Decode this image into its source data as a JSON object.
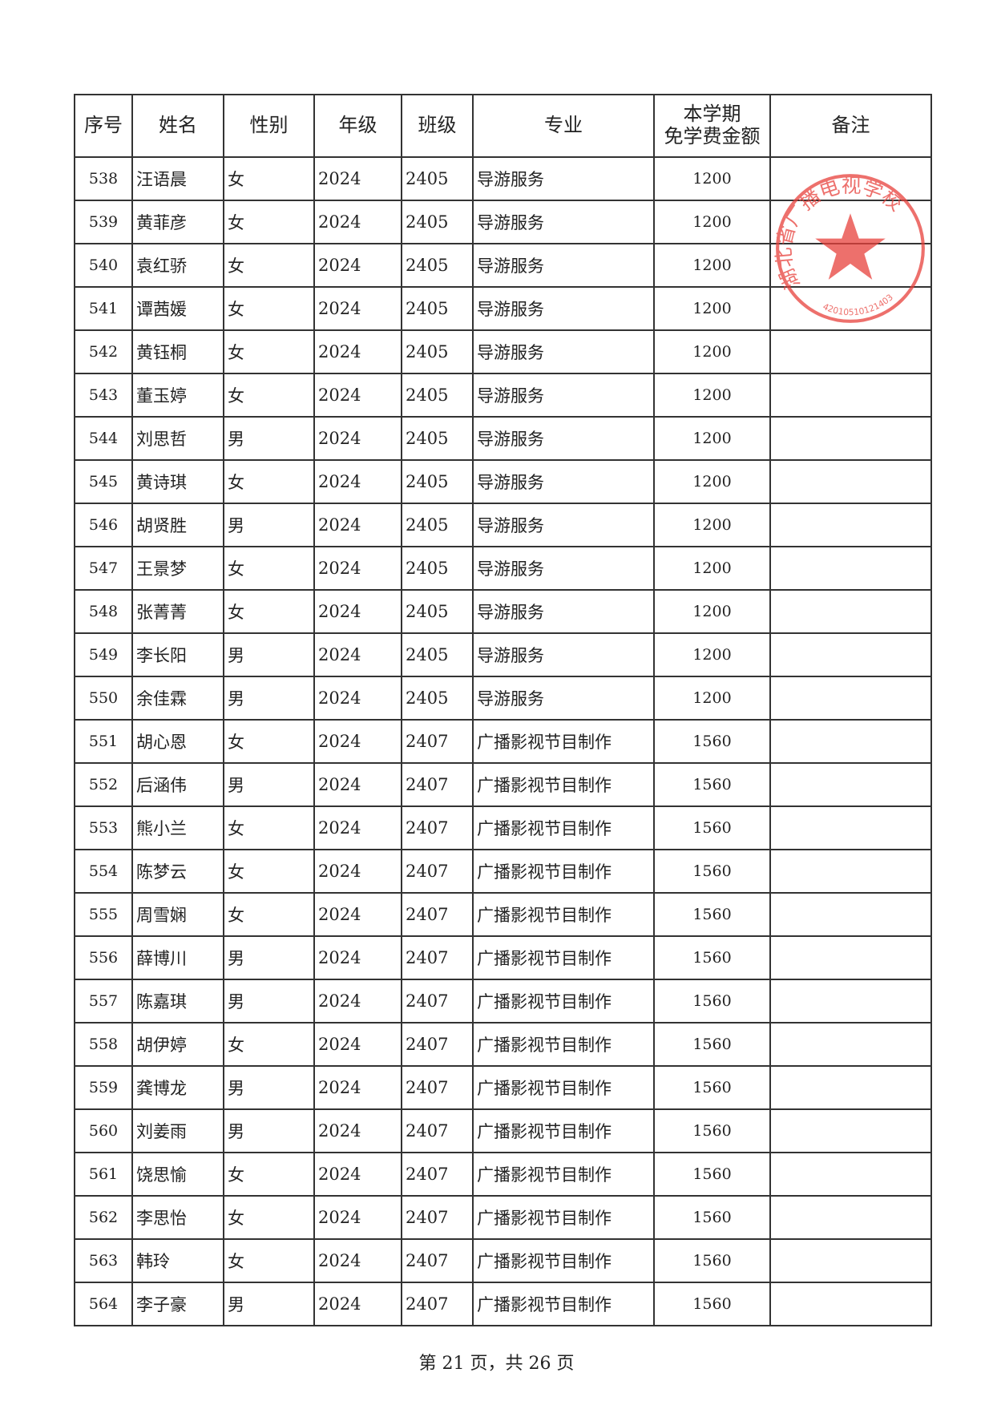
{
  "table": {
    "headers": [
      "序号",
      "姓名",
      "性别",
      "年级",
      "班级",
      "专业",
      "本学期\n免学费金额",
      "备注"
    ],
    "rows": [
      [
        "538",
        "汪语晨",
        "女",
        "2024",
        "2405",
        "导游服务",
        "1200",
        ""
      ],
      [
        "539",
        "黄菲彦",
        "女",
        "2024",
        "2405",
        "导游服务",
        "1200",
        ""
      ],
      [
        "540",
        "袁红骄",
        "女",
        "2024",
        "2405",
        "导游服务",
        "1200",
        ""
      ],
      [
        "541",
        "谭茜媛",
        "女",
        "2024",
        "2405",
        "导游服务",
        "1200",
        ""
      ],
      [
        "542",
        "黄钰桐",
        "女",
        "2024",
        "2405",
        "导游服务",
        "1200",
        ""
      ],
      [
        "543",
        "董玉婷",
        "女",
        "2024",
        "2405",
        "导游服务",
        "1200",
        ""
      ],
      [
        "544",
        "刘思哲",
        "男",
        "2024",
        "2405",
        "导游服务",
        "1200",
        ""
      ],
      [
        "545",
        "黄诗琪",
        "女",
        "2024",
        "2405",
        "导游服务",
        "1200",
        ""
      ],
      [
        "546",
        "胡贤胜",
        "男",
        "2024",
        "2405",
        "导游服务",
        "1200",
        ""
      ],
      [
        "547",
        "王景梦",
        "女",
        "2024",
        "2405",
        "导游服务",
        "1200",
        ""
      ],
      [
        "548",
        "张菁菁",
        "女",
        "2024",
        "2405",
        "导游服务",
        "1200",
        ""
      ],
      [
        "549",
        "李长阳",
        "男",
        "2024",
        "2405",
        "导游服务",
        "1200",
        ""
      ],
      [
        "550",
        "余佳霖",
        "男",
        "2024",
        "2405",
        "导游服务",
        "1200",
        ""
      ],
      [
        "551",
        "胡心恩",
        "女",
        "2024",
        "2407",
        "广播影视节目制作",
        "1560",
        ""
      ],
      [
        "552",
        "后涵伟",
        "男",
        "2024",
        "2407",
        "广播影视节目制作",
        "1560",
        ""
      ],
      [
        "553",
        "熊小兰",
        "女",
        "2024",
        "2407",
        "广播影视节目制作",
        "1560",
        ""
      ],
      [
        "554",
        "陈梦云",
        "女",
        "2024",
        "2407",
        "广播影视节目制作",
        "1560",
        ""
      ],
      [
        "555",
        "周雪娴",
        "女",
        "2024",
        "2407",
        "广播影视节目制作",
        "1560",
        ""
      ],
      [
        "556",
        "薛博川",
        "男",
        "2024",
        "2407",
        "广播影视节目制作",
        "1560",
        ""
      ],
      [
        "557",
        "陈嘉琪",
        "男",
        "2024",
        "2407",
        "广播影视节目制作",
        "1560",
        ""
      ],
      [
        "558",
        "胡伊婷",
        "女",
        "2024",
        "2407",
        "广播影视节目制作",
        "1560",
        ""
      ],
      [
        "559",
        "龚博龙",
        "男",
        "2024",
        "2407",
        "广播影视节目制作",
        "1560",
        ""
      ],
      [
        "560",
        "刘姜雨",
        "男",
        "2024",
        "2407",
        "广播影视节目制作",
        "1560",
        ""
      ],
      [
        "561",
        "饶思愉",
        "女",
        "2024",
        "2407",
        "广播影视节目制作",
        "1560",
        ""
      ],
      [
        "562",
        "李思怡",
        "女",
        "2024",
        "2407",
        "广播影视节目制作",
        "1560",
        ""
      ],
      [
        "563",
        "韩玲",
        "女",
        "2024",
        "2407",
        "广播影视节目制作",
        "1560",
        ""
      ],
      [
        "564",
        "李子豪",
        "男",
        "2024",
        "2407",
        "广播影视节目制作",
        "1560",
        ""
      ]
    ]
  },
  "stamp": {
    "text": "湖北省广播电视学校",
    "code": "42010510121403",
    "color": "#e8413c"
  },
  "footer": "第 21 页，共 26 页"
}
